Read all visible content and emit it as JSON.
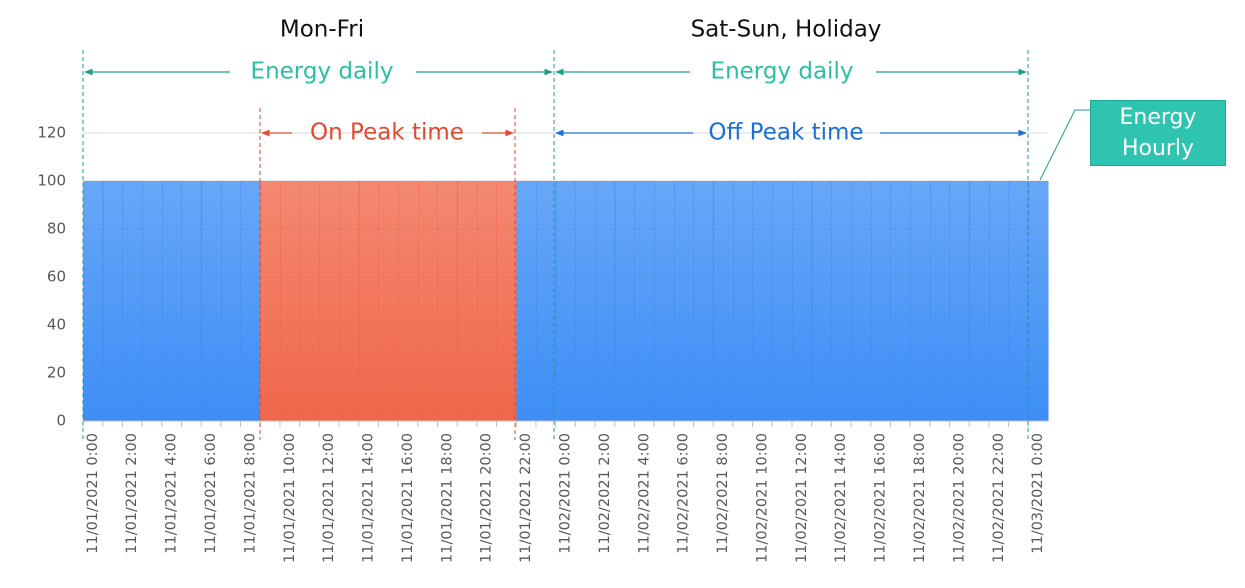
{
  "chart_data": {
    "type": "bar",
    "categories": [
      "11/01/2021 0:00",
      null,
      "11/01/2021 2:00",
      null,
      "11/01/2021 4:00",
      null,
      "11/01/2021 6:00",
      null,
      "11/01/2021 8:00",
      null,
      "11/01/2021 10:00",
      null,
      "11/01/2021 12:00",
      null,
      "11/01/2021 14:00",
      null,
      "11/01/2021 16:00",
      null,
      "11/01/2021 18:00",
      null,
      "11/01/2021 20:00",
      null,
      "11/01/2021 22:00",
      null,
      "11/02/2021 0:00",
      null,
      "11/02/2021 2:00",
      null,
      "11/02/2021 4:00",
      null,
      "11/02/2021 6:00",
      null,
      "11/02/2021 8:00",
      null,
      "11/02/2021 10:00",
      null,
      "11/02/2021 12:00",
      null,
      "11/02/2021 14:00",
      null,
      "11/02/2021 16:00",
      null,
      "11/02/2021 18:00",
      null,
      "11/02/2021 20:00",
      null,
      "11/02/2021 22:00",
      null,
      "11/03/2021 0:00"
    ],
    "series": [
      {
        "name": "Energy Hourly",
        "values": [
          100,
          100,
          100,
          100,
          100,
          100,
          100,
          100,
          100,
          100,
          100,
          100,
          100,
          100,
          100,
          100,
          100,
          100,
          100,
          100,
          100,
          100,
          100,
          100,
          100,
          100,
          100,
          100,
          100,
          100,
          100,
          100,
          100,
          100,
          100,
          100,
          100,
          100,
          100,
          100,
          100,
          100,
          100,
          100,
          100,
          100,
          100,
          100,
          100
        ],
        "colors": [
          "#3d8ef5",
          "#3d8ef5",
          "#3d8ef5",
          "#3d8ef5",
          "#3d8ef5",
          "#3d8ef5",
          "#3d8ef5",
          "#3d8ef5",
          "#3d8ef5",
          "#f0674a",
          "#f0674a",
          "#f0674a",
          "#f0674a",
          "#f0674a",
          "#f0674a",
          "#f0674a",
          "#f0674a",
          "#f0674a",
          "#f0674a",
          "#f0674a",
          "#f0674a",
          "#f0674a",
          "#3d8ef5",
          "#3d8ef5",
          "#3d8ef5",
          "#3d8ef5",
          "#3d8ef5",
          "#3d8ef5",
          "#3d8ef5",
          "#3d8ef5",
          "#3d8ef5",
          "#3d8ef5",
          "#3d8ef5",
          "#3d8ef5",
          "#3d8ef5",
          "#3d8ef5",
          "#3d8ef5",
          "#3d8ef5",
          "#3d8ef5",
          "#3d8ef5",
          "#3d8ef5",
          "#3d8ef5",
          "#3d8ef5",
          "#3d8ef5",
          "#3d8ef5",
          "#3d8ef5",
          "#3d8ef5",
          "#3d8ef5",
          "#3d8ef5"
        ]
      }
    ],
    "ylim": [
      0,
      120
    ],
    "yticks": [
      0,
      20,
      40,
      60,
      80,
      100,
      120
    ],
    "grid": true,
    "annotations": {
      "weekday": "Mon-Fri",
      "weekend": "Sat-Sun, Holiday",
      "daily": [
        "Energy daily",
        "Energy daily"
      ],
      "on_peak": "On Peak time",
      "off_peak": "Off Peak time"
    }
  }
}
